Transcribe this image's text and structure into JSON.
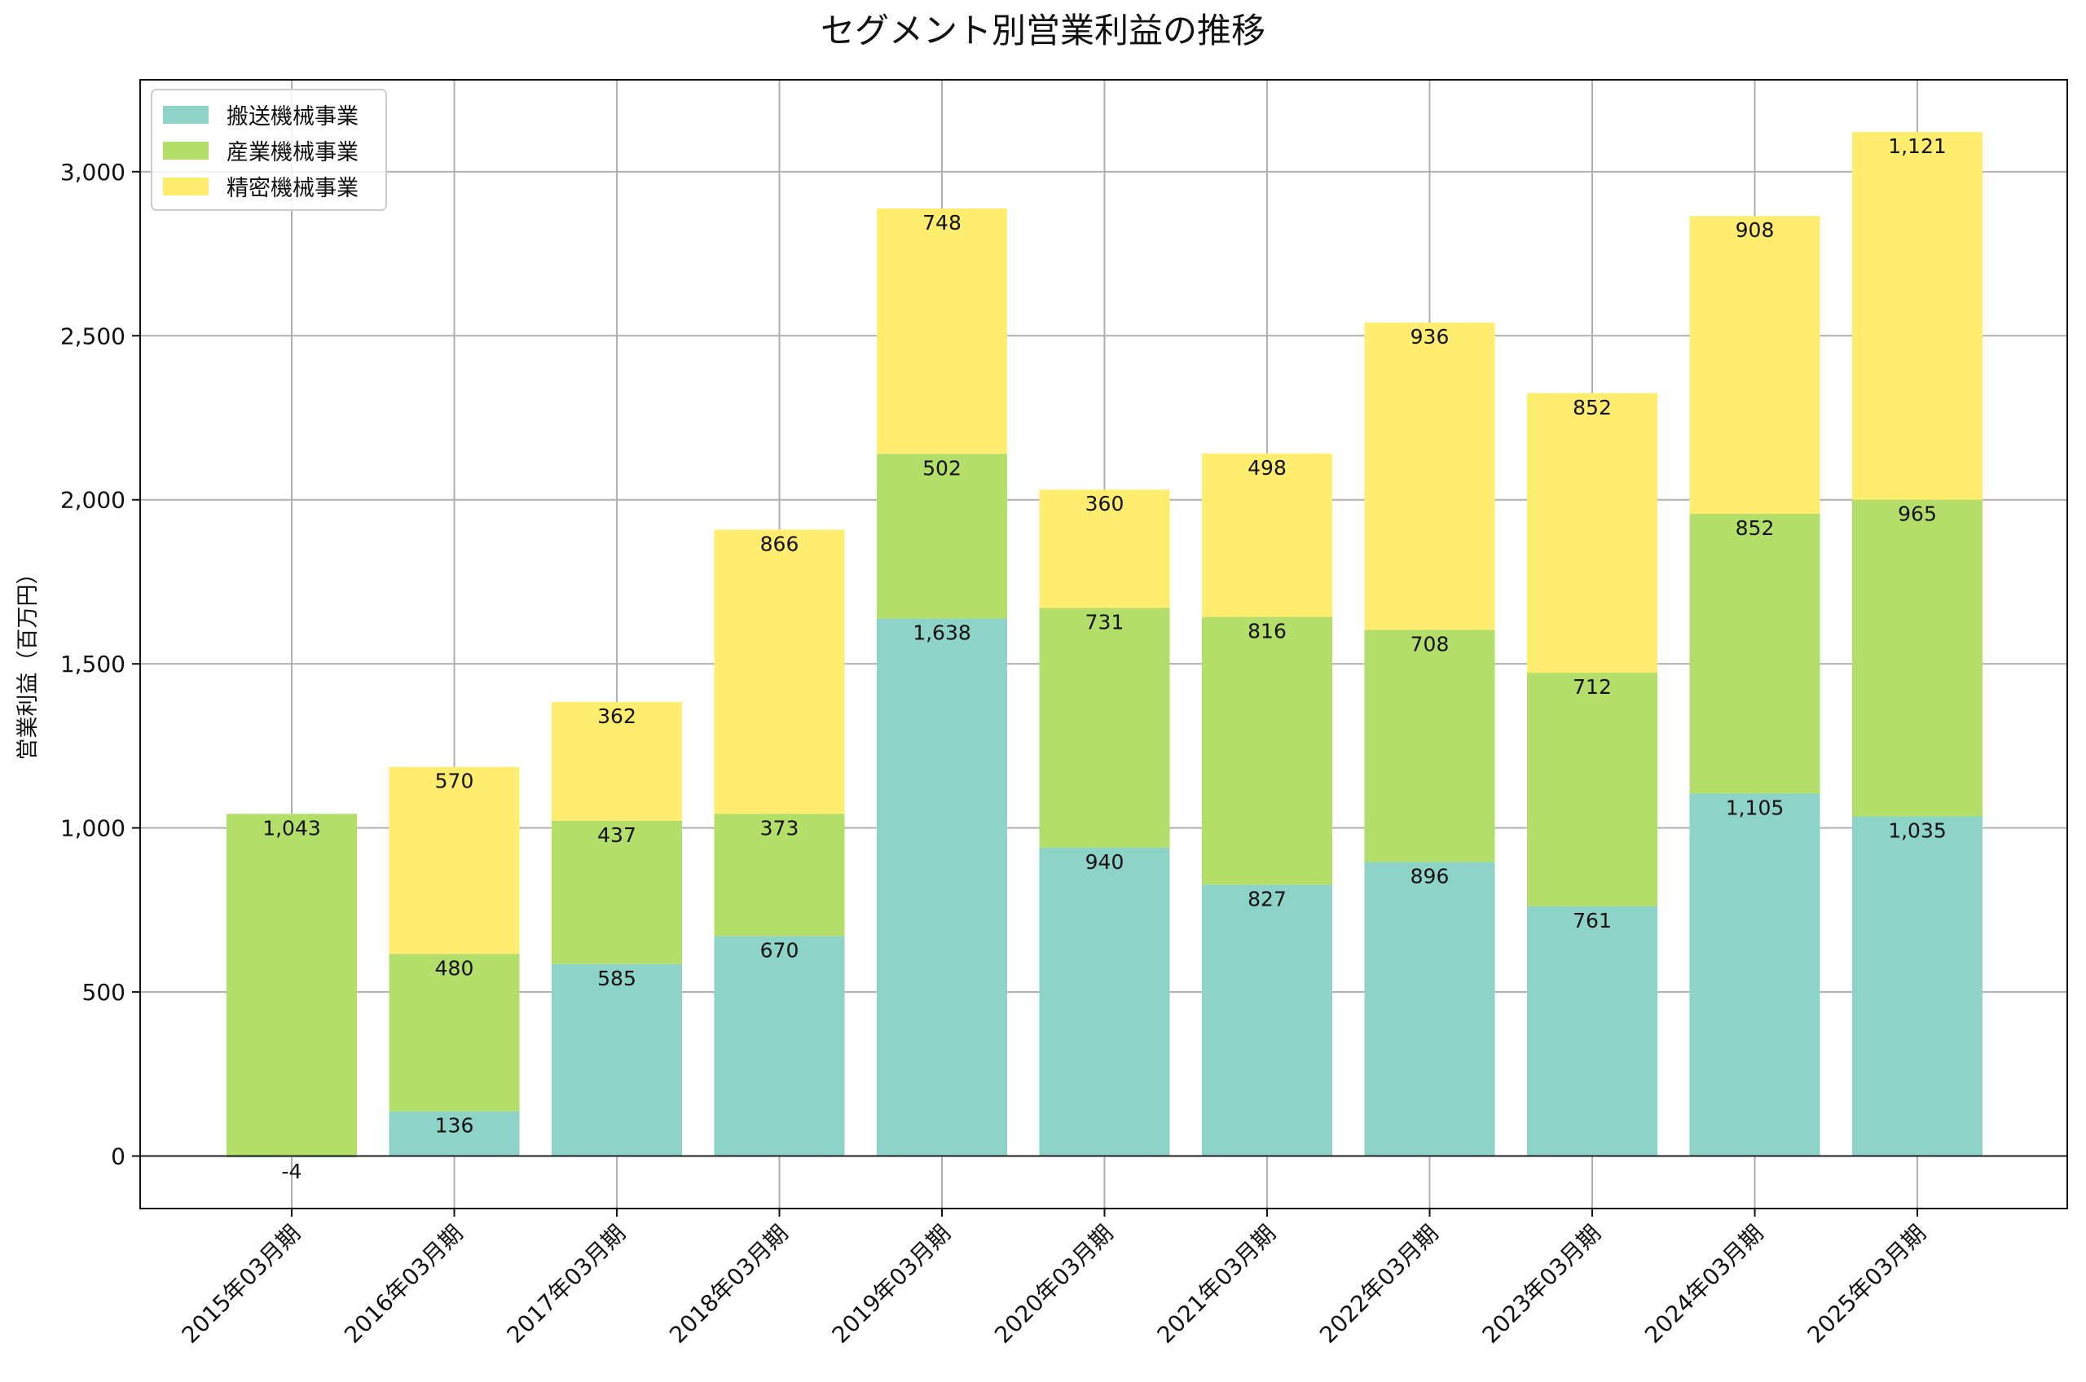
{
  "chart_data": {
    "type": "bar",
    "stacked": true,
    "title": "セグメント別営業利益の推移",
    "xlabel": "",
    "ylabel": "営業利益（百万円）",
    "ylim": [
      -160,
      3280
    ],
    "yticks": [
      0,
      500,
      1000,
      1500,
      2000,
      2500,
      3000
    ],
    "ytick_labels": [
      "0",
      "500",
      "1,000",
      "1,500",
      "2,000",
      "2,500",
      "3,000"
    ],
    "grid": true,
    "legend_position": "top-left",
    "categories": [
      "2015年03月期",
      "2016年03月期",
      "2017年03月期",
      "2018年03月期",
      "2019年03月期",
      "2020年03月期",
      "2021年03月期",
      "2022年03月期",
      "2023年03月期",
      "2024年03月期",
      "2025年03月期"
    ],
    "series": [
      {
        "name": "搬送機械事業",
        "color": "#8dd3c7",
        "values": [
          -4,
          136,
          585,
          670,
          1638,
          940,
          827,
          896,
          761,
          1105,
          1035
        ]
      },
      {
        "name": "産業機械事業",
        "color": "#b3de69",
        "values": [
          1043,
          480,
          437,
          373,
          502,
          731,
          816,
          708,
          712,
          852,
          965
        ]
      },
      {
        "name": "精密機械事業",
        "color": "#ffed6f",
        "values": [
          0,
          570,
          362,
          866,
          748,
          360,
          498,
          936,
          852,
          908,
          1121
        ]
      }
    ],
    "data_labels": [
      [
        "-4",
        "136",
        "585",
        "670",
        "1,638",
        "940",
        "827",
        "896",
        "761",
        "1,105",
        "1,035"
      ],
      [
        "1,043",
        "480",
        "437",
        "373",
        "502",
        "731",
        "816",
        "708",
        "712",
        "852",
        "965"
      ],
      [
        "",
        "570",
        "362",
        "866",
        "748",
        "360",
        "498",
        "936",
        "852",
        "908",
        "1,121"
      ]
    ]
  }
}
